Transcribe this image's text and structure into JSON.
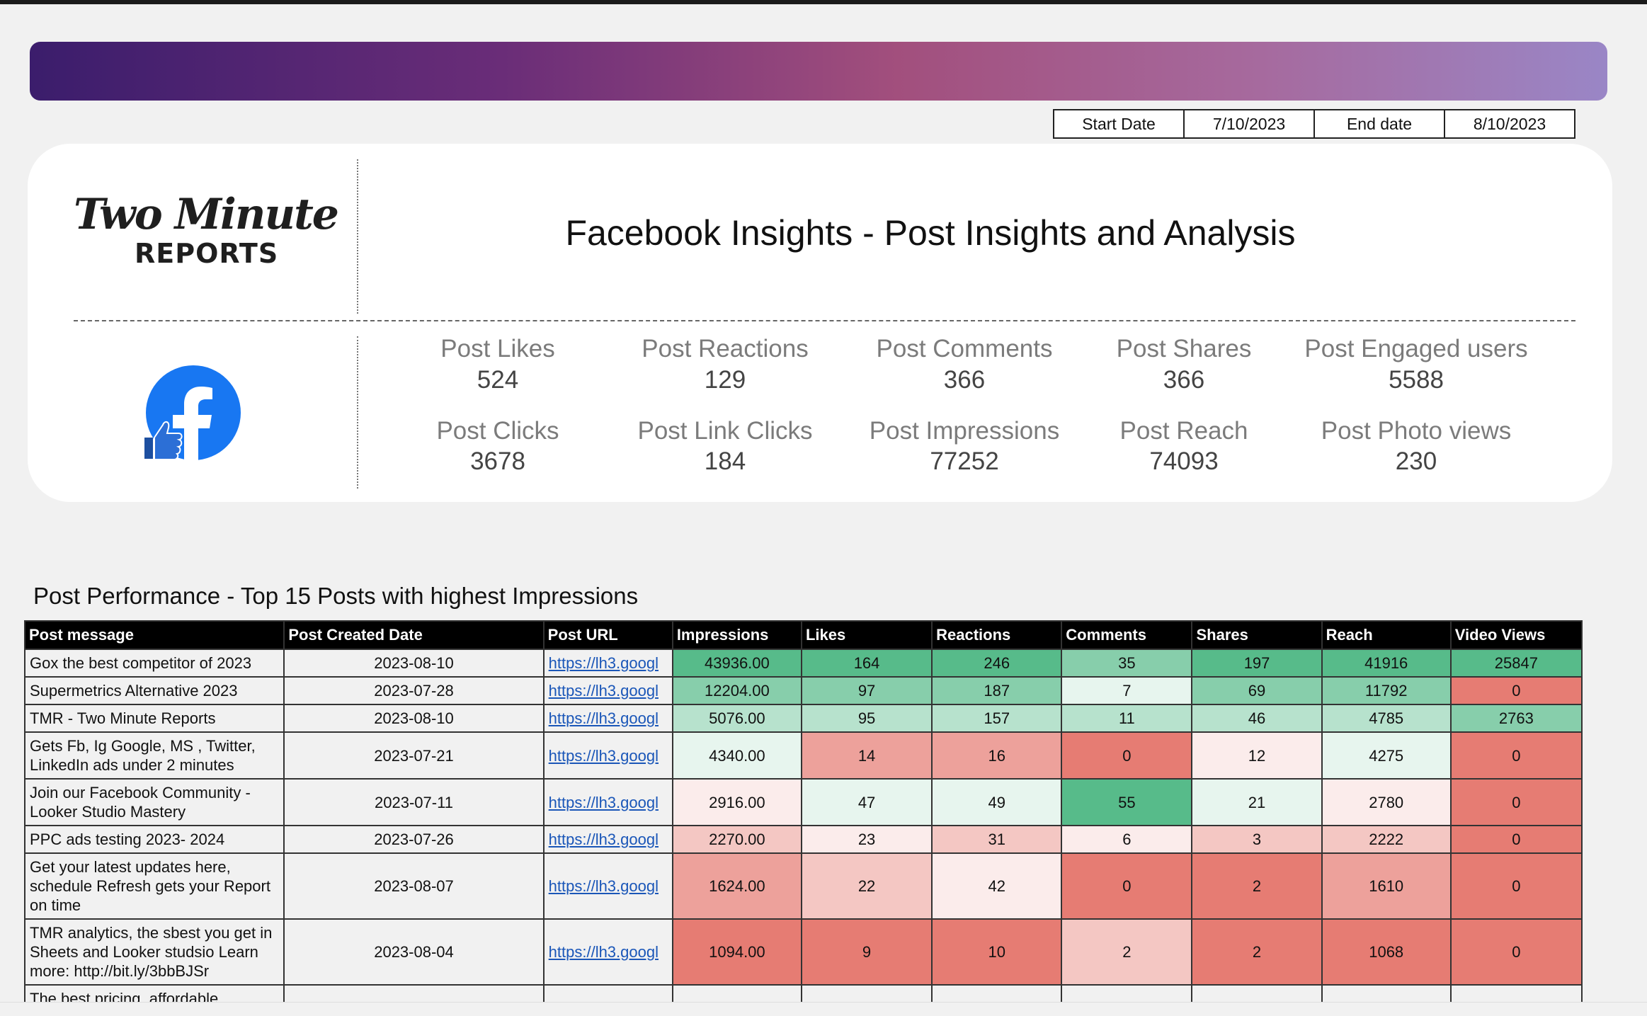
{
  "header": {
    "start_label": "Start Date",
    "start_date": "7/10/2023",
    "end_label": "End date",
    "end_date": "8/10/2023"
  },
  "logo": {
    "line1": "Two Minute",
    "line2": "REPORTS"
  },
  "title": "Facebook Insights - Post Insights and Analysis",
  "metrics": [
    {
      "label": "Post Likes",
      "value": 524
    },
    {
      "label": "Post Reactions",
      "value": 129
    },
    {
      "label": "Post Comments",
      "value": 366
    },
    {
      "label": "Post Shares",
      "value": 366
    },
    {
      "label": "Post Engaged users",
      "value": 5588
    },
    {
      "label": "Post Clicks",
      "value": 3678
    },
    {
      "label": "Post Link Clicks",
      "value": 184
    },
    {
      "label": "Post Impressions",
      "value": 77252
    },
    {
      "label": "Post Reach",
      "value": 74093
    },
    {
      "label": "Post Photo views",
      "value": 230
    }
  ],
  "table": {
    "title": "Post Performance - Top 15 Posts with highest Impressions",
    "columns": [
      "Post message",
      "Post Created Date",
      "Post URL",
      "Impressions",
      "Likes",
      "Reactions",
      "Comments",
      "Shares",
      "Reach",
      "Video Views"
    ],
    "rows": [
      [
        "Gox the best competitor of 2023",
        "2023-08-10",
        "https://lh3.googl",
        "43936.00",
        164,
        246,
        35,
        197,
        41916,
        25847
      ],
      [
        "Supermetrics Alternative 2023",
        "2023-07-28",
        "https://lh3.googl",
        "12204.00",
        97,
        187,
        7,
        69,
        11792,
        0
      ],
      [
        "TMR - Two Minute Reports",
        "2023-08-10",
        "https://lh3.googl",
        "5076.00",
        95,
        157,
        11,
        46,
        4785,
        2763
      ],
      [
        "Gets Fb, Ig Google, MS , Twitter, LinkedIn ads under 2 minutes",
        "2023-07-21",
        "https://lh3.googl",
        "4340.00",
        14,
        16,
        0,
        12,
        4275,
        0
      ],
      [
        "Join our Facebook Community - Looker Studio Mastery",
        "2023-07-11",
        "https://lh3.googl",
        "2916.00",
        47,
        49,
        55,
        21,
        2780,
        0
      ],
      [
        "PPC ads testing 2023- 2024",
        "2023-07-26",
        "https://lh3.googl",
        "2270.00",
        23,
        31,
        6,
        3,
        2222,
        0
      ],
      [
        "Get your latest updates here, schedule Refresh gets your Report on time",
        "2023-08-07",
        "https://lh3.googl",
        "1624.00",
        22,
        42,
        0,
        2,
        1610,
        0
      ],
      [
        "TMR analytics, the sbest you get in Sheets and Looker studsio Learn more: http://bit.ly/3bbBJSr",
        "2023-08-04",
        "https://lh3.googl",
        "1094.00",
        9,
        10,
        2,
        2,
        1068,
        0
      ],
      [
        "The best pricing, affordable"
      ]
    ]
  }
}
